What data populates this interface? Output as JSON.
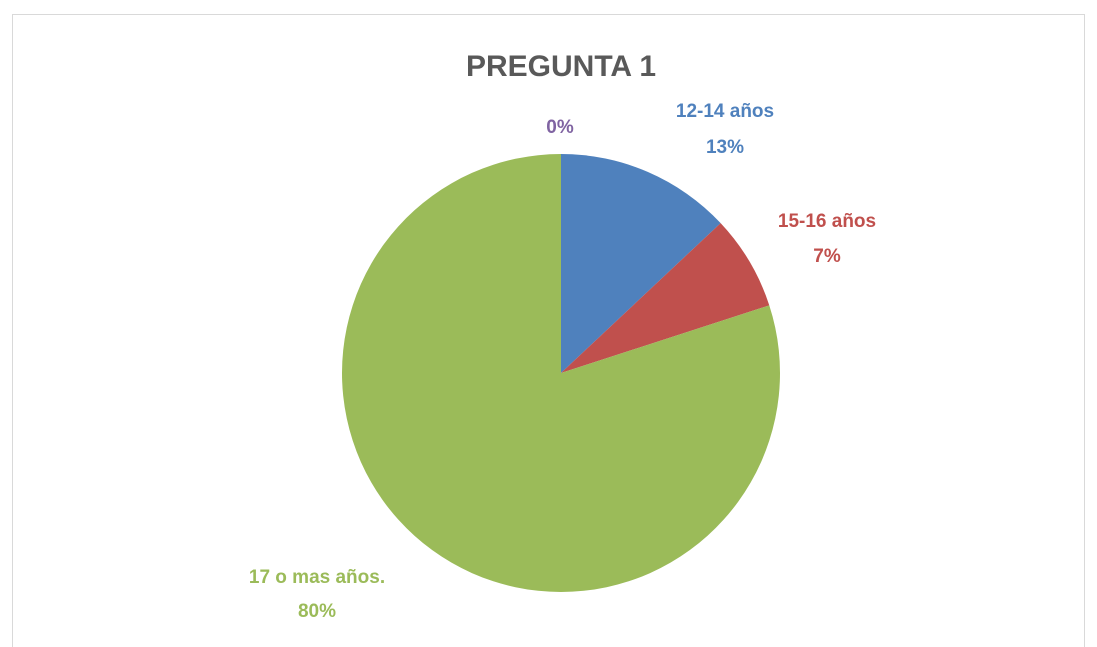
{
  "chart_data": {
    "type": "pie",
    "title": "PREGUNTA 1",
    "categories": [
      "12-14 años",
      "15-16 años",
      "17 o mas años.",
      null
    ],
    "values": [
      13,
      7,
      80,
      0
    ],
    "value_labels": [
      "13%",
      "7%",
      "80%",
      "0%"
    ],
    "colors": [
      "#4f81bd",
      "#c0504d",
      "#9bbb59",
      "#8064a2"
    ]
  }
}
